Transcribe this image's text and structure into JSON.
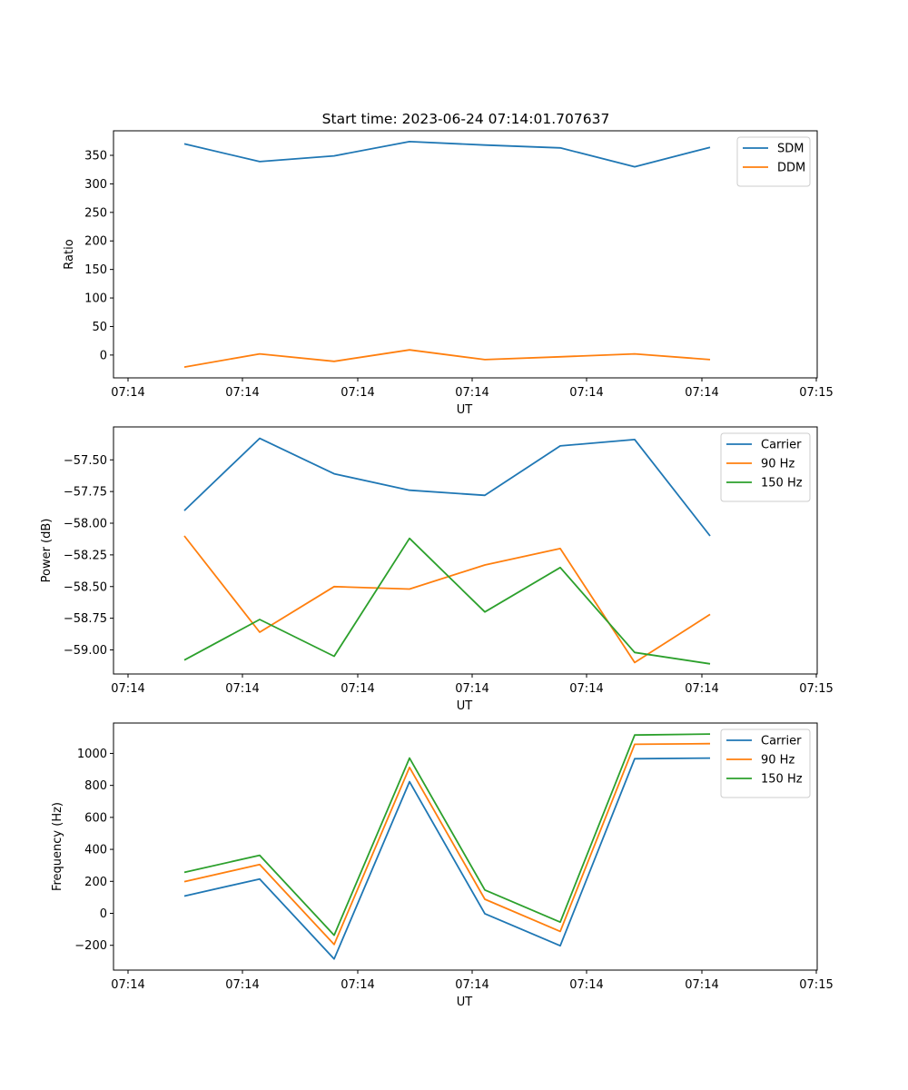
{
  "figure_title": "Start time: 2023-06-24 07:14:01.707637",
  "colors": {
    "blue": "#1f77b4",
    "orange": "#ff7f0e",
    "green": "#2ca02c"
  },
  "chart_data": [
    {
      "type": "line",
      "title": "Start time: 2023-06-24 07:14:01.707637",
      "xlabel": "UT",
      "ylabel": "Ratio",
      "x_tick_labels": [
        "07:14",
        "07:14",
        "07:14",
        "07:14",
        "07:14",
        "07:14",
        "07:14",
        "07:15"
      ],
      "ylim": [
        -40,
        393
      ],
      "y_ticks": [
        0,
        50,
        100,
        150,
        200,
        250,
        300,
        350
      ],
      "legend_position": "top-right",
      "series": [
        {
          "name": "SDM",
          "color": "#1f77b4",
          "values": [
            370,
            339,
            349,
            374,
            368,
            363,
            330,
            364
          ]
        },
        {
          "name": "DDM",
          "color": "#ff7f0e",
          "values": [
            -21,
            2,
            -11,
            9,
            -8,
            -3,
            2,
            -8
          ]
        }
      ]
    },
    {
      "type": "line",
      "title": "",
      "xlabel": "UT",
      "ylabel": "Power (dB)",
      "x_tick_labels": [
        "07:14",
        "07:14",
        "07:14",
        "07:14",
        "07:14",
        "07:14",
        "07:14",
        "07:15"
      ],
      "ylim": [
        -59.19,
        -57.24
      ],
      "y_ticks": [
        -57.5,
        -57.75,
        -58.0,
        -58.25,
        -58.5,
        -58.75,
        -59.0
      ],
      "y_tick_labels": [
        "−57.50",
        "−57.75",
        "−58.00",
        "−58.25",
        "−58.50",
        "−58.75",
        "−59.00"
      ],
      "legend_position": "top-right",
      "series": [
        {
          "name": "Carrier",
          "color": "#1f77b4",
          "values": [
            -57.9,
            -57.33,
            -57.61,
            -57.74,
            -57.78,
            -57.39,
            -57.34,
            -58.1
          ]
        },
        {
          "name": "90 Hz",
          "color": "#ff7f0e",
          "values": [
            -58.1,
            -58.86,
            -58.5,
            -58.52,
            -58.33,
            -58.2,
            -59.1,
            -58.72
          ]
        },
        {
          "name": "150 Hz",
          "color": "#2ca02c",
          "values": [
            -59.08,
            -58.76,
            -59.05,
            -58.12,
            -58.7,
            -58.35,
            -59.02,
            -59.11
          ]
        }
      ]
    },
    {
      "type": "line",
      "title": "",
      "xlabel": "UT",
      "ylabel": "Frequency (Hz)",
      "x_tick_labels": [
        "07:14",
        "07:14",
        "07:14",
        "07:14",
        "07:14",
        "07:14",
        "07:14",
        "07:15"
      ],
      "ylim": [
        -355,
        1190
      ],
      "y_ticks": [
        -200,
        0,
        200,
        400,
        600,
        800,
        1000
      ],
      "y_tick_labels": [
        "−200",
        "0",
        "200",
        "400",
        "600",
        "800",
        "1000"
      ],
      "legend_position": "top-right",
      "series": [
        {
          "name": "Carrier",
          "color": "#1f77b4",
          "values": [
            108,
            215,
            -285,
            823,
            -2,
            -203,
            967,
            971
          ]
        },
        {
          "name": "90 Hz",
          "color": "#ff7f0e",
          "values": [
            198,
            305,
            -195,
            913,
            88,
            -113,
            1057,
            1061
          ]
        },
        {
          "name": "150 Hz",
          "color": "#2ca02c",
          "values": [
            256,
            363,
            -137,
            971,
            146,
            -55,
            1115,
            1121
          ]
        }
      ]
    }
  ]
}
